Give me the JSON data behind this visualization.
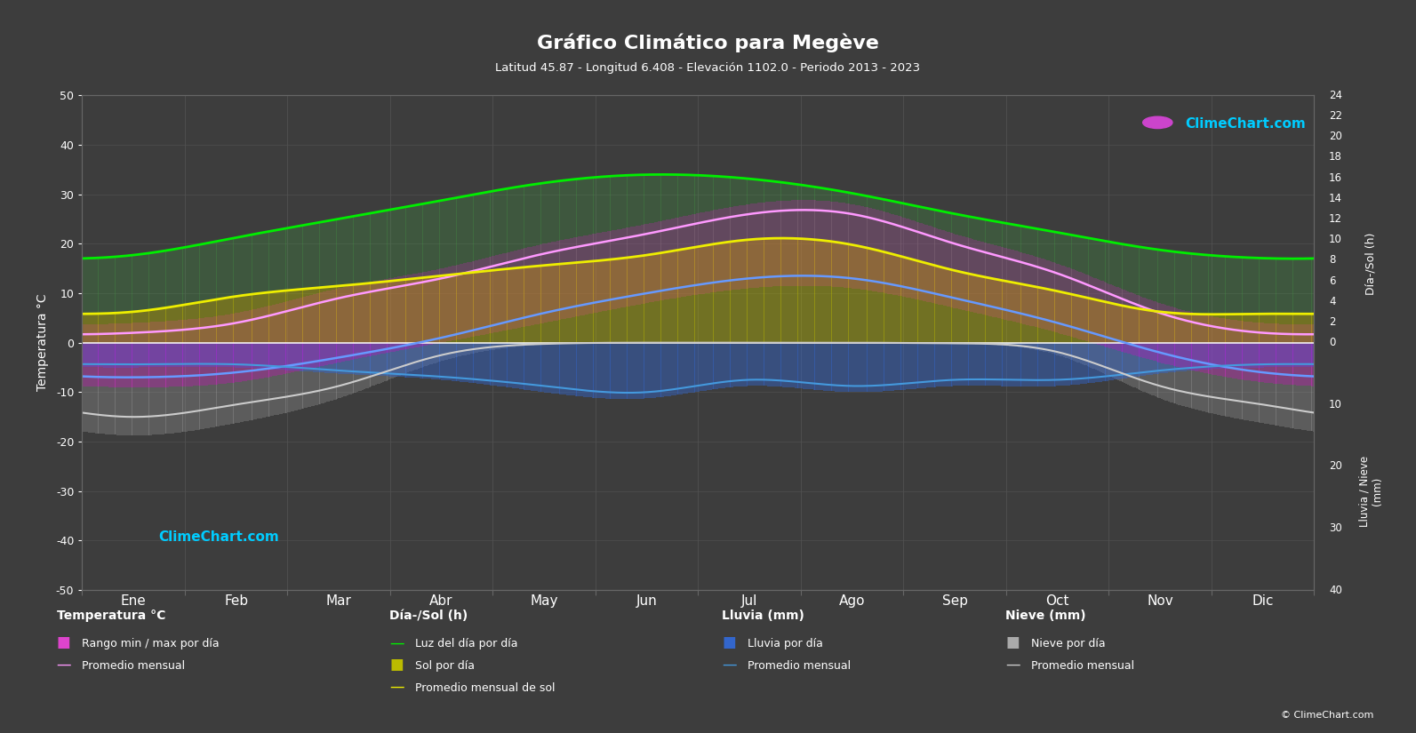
{
  "title": "Gráfico Climático para Megève",
  "subtitle": "Latitud 45.87 - Longitud 6.408 - Elevación 1102.0 - Periodo 2013 - 2023",
  "months": [
    "Ene",
    "Feb",
    "Mar",
    "Abr",
    "May",
    "Jun",
    "Jul",
    "Ago",
    "Sep",
    "Oct",
    "Nov",
    "Dic"
  ],
  "background_color": "#3d3d3d",
  "plot_bg_color": "#3d3d3d",
  "temp_max_daily": [
    4,
    6,
    11,
    15,
    20,
    24,
    28,
    28,
    22,
    16,
    8,
    4
  ],
  "temp_min_daily": [
    -9,
    -8,
    -4,
    0,
    4,
    8,
    11,
    11,
    7,
    2,
    -4,
    -8
  ],
  "temp_avg_max_monthly": [
    2,
    4,
    9,
    13,
    18,
    22,
    26,
    26,
    20,
    14,
    6,
    2
  ],
  "temp_avg_min_monthly": [
    -7,
    -6,
    -3,
    1,
    6,
    10,
    13,
    13,
    9,
    4,
    -2,
    -6
  ],
  "daylight_hours": [
    8.5,
    10.2,
    12.0,
    13.8,
    15.5,
    16.3,
    15.9,
    14.5,
    12.5,
    10.7,
    9.0,
    8.2
  ],
  "sunshine_hours_daily": [
    3.0,
    4.5,
    5.5,
    6.5,
    7.5,
    8.5,
    10.0,
    9.5,
    7.0,
    5.0,
    3.0,
    2.8
  ],
  "sunshine_avg_monthly": [
    3.0,
    4.5,
    5.5,
    6.5,
    7.5,
    8.5,
    10.0,
    9.5,
    7.0,
    5.0,
    3.0,
    2.8
  ],
  "rain_mm_daily": [
    4,
    4,
    5,
    6,
    8,
    9,
    7,
    8,
    7,
    7,
    5,
    4
  ],
  "rain_avg_monthly": [
    3.5,
    3.5,
    4.5,
    5.5,
    7.0,
    8.0,
    6.0,
    7.0,
    6.0,
    6.0,
    4.5,
    3.5
  ],
  "snow_mm_daily": [
    15,
    13,
    9,
    3,
    0.3,
    0,
    0,
    0,
    0.2,
    2,
    9,
    13
  ],
  "snow_avg_monthly": [
    12,
    10,
    7,
    2,
    0.2,
    0,
    0,
    0,
    0.1,
    1.5,
    7,
    10
  ],
  "ylim_temp": [
    -50,
    50
  ],
  "grid_color": "#505050",
  "temp_bar_color": "#dd00cc",
  "daylight_line_color": "#00ee00",
  "sunshine_bar_color": "#bbbb00",
  "sunshine_avg_color": "#eeee00",
  "rain_bar_color": "#3366cc",
  "rain_avg_color": "#4499dd",
  "snow_bar_color": "#aaaaaa",
  "snow_avg_color": "#cccccc",
  "temp_avg_max_color": "#ff99ff",
  "temp_avg_min_color": "#6699ff",
  "zero_line_color": "#ffffff",
  "logo_color": "#00ccff"
}
